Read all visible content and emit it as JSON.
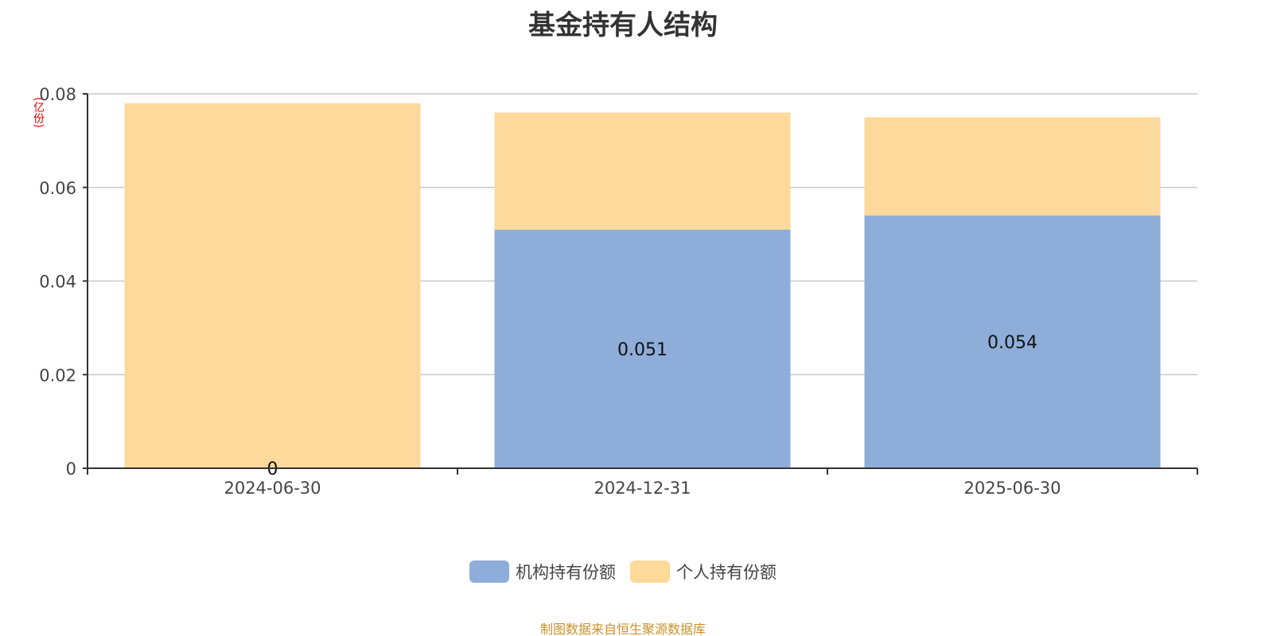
{
  "chart_data": {
    "type": "bar",
    "stacked": true,
    "title": "基金持有人结构",
    "ylabel": "(亿份)",
    "categories": [
      "2024-06-30",
      "2024-12-31",
      "2025-06-30"
    ],
    "series": [
      {
        "name": "机构持有份额",
        "values": [
          0,
          0.051,
          0.054
        ],
        "color": "#8eaed9",
        "labels": [
          "0",
          "0.051",
          "0.054"
        ]
      },
      {
        "name": "个人持有份额",
        "values": [
          0.078,
          0.025,
          0.021
        ],
        "color": "#fdd99b"
      }
    ],
    "ylim": [
      0,
      0.08
    ],
    "yticks": [
      "0",
      "0.02",
      "0.04",
      "0.06",
      "0.08"
    ],
    "grid": true,
    "legend": "bottom"
  },
  "source": "制图数据来自恒生聚源数据库"
}
